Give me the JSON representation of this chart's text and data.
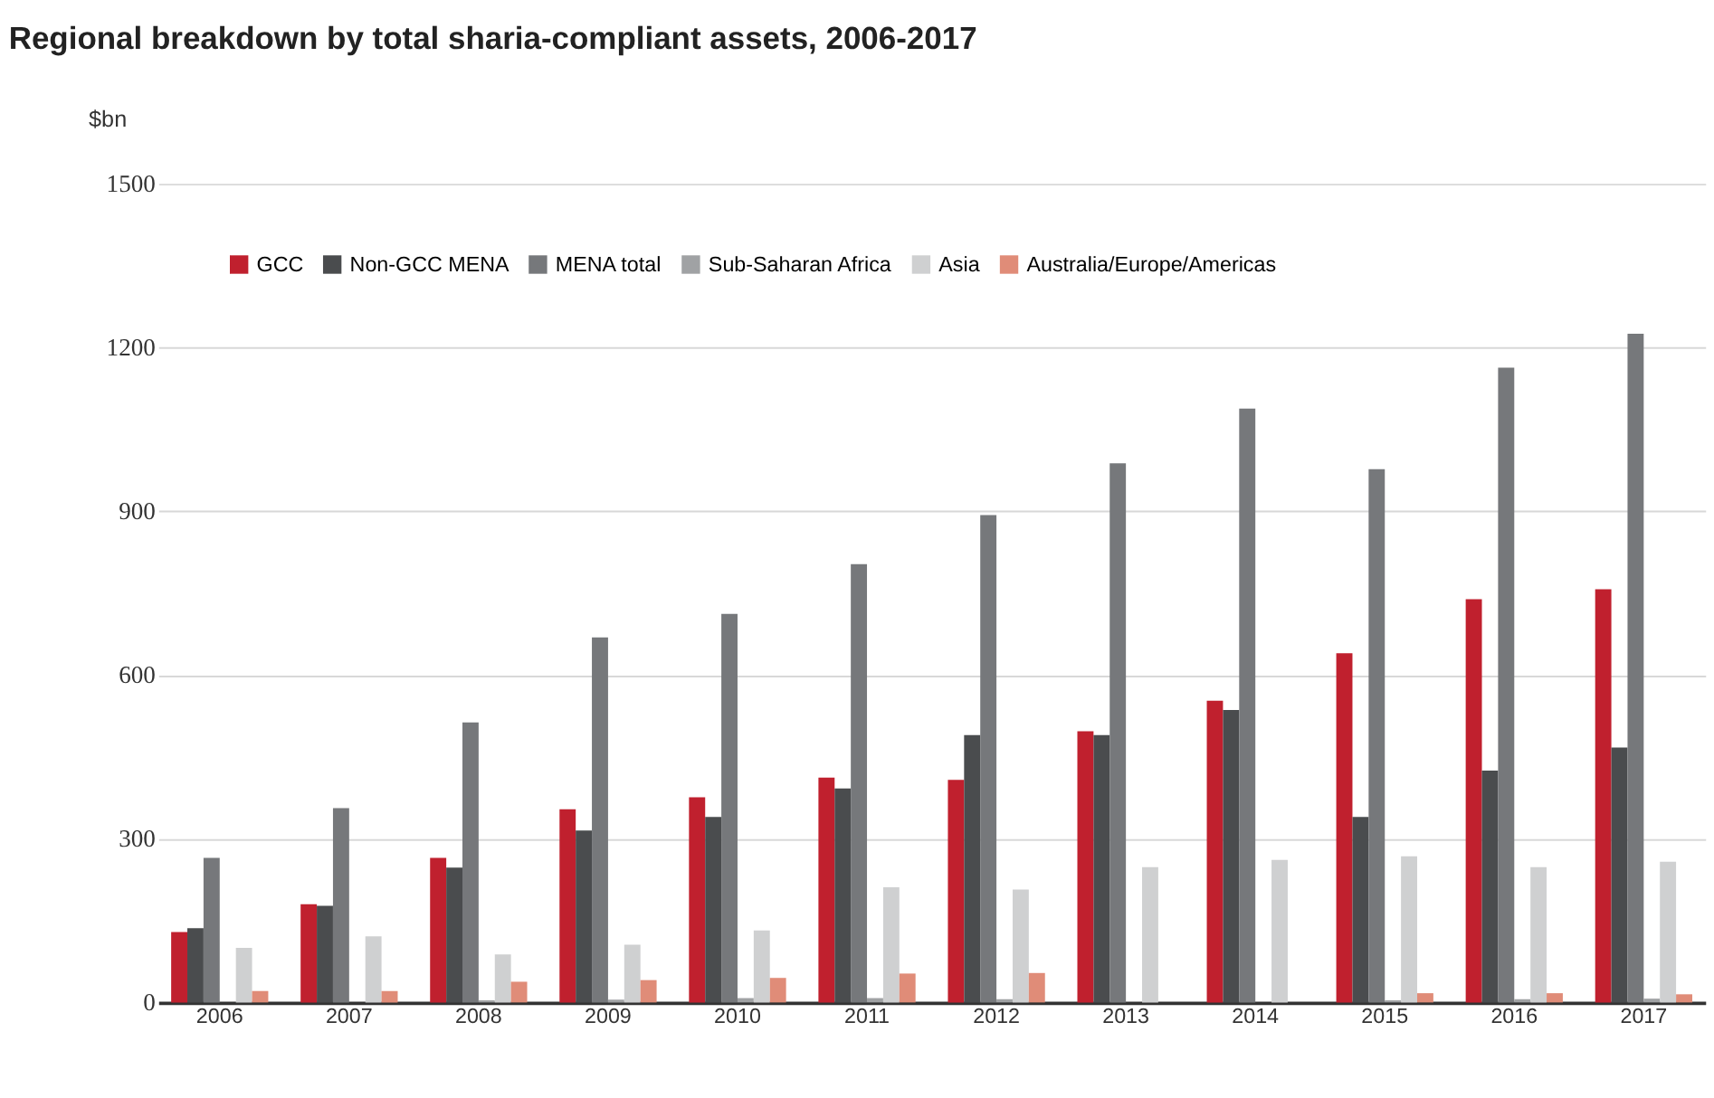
{
  "chart_data": {
    "type": "bar",
    "title": "Regional breakdown by total sharia-compliant assets, 2006-2017",
    "ylabel": "$bn",
    "categories": [
      "2006",
      "2007",
      "2008",
      "2009",
      "2010",
      "2011",
      "2012",
      "2013",
      "2014",
      "2015",
      "2016",
      "2017"
    ],
    "series": [
      {
        "name": "GCC",
        "color": "#c0202e",
        "values": [
          129,
          180,
          265,
          354,
          376,
          412,
          408,
          497,
          553,
          640,
          739,
          757
        ]
      },
      {
        "name": "Non-GCC MENA",
        "color": "#4a4c4e",
        "values": [
          136,
          177,
          247,
          315,
          340,
          392,
          490,
          490,
          536,
          340,
          425,
          467
        ]
      },
      {
        "name": "MENA total",
        "color": "#76787b",
        "values": [
          265,
          356,
          513,
          669,
          712,
          803,
          893,
          988,
          1088,
          977,
          1163,
          1225
        ]
      },
      {
        "name": "Sub-Saharan Africa",
        "color": "#a0a2a4",
        "values": [
          null,
          null,
          4,
          5,
          8,
          8,
          6,
          null,
          null,
          4,
          6,
          7
        ]
      },
      {
        "name": "Asia",
        "color": "#cfd0d1",
        "values": [
          100,
          121,
          88,
          106,
          132,
          211,
          207,
          248,
          261,
          268,
          248,
          258
        ]
      },
      {
        "name": "Australia/Europe/Americas",
        "color": "#e08c78",
        "values": [
          21,
          21,
          38,
          41,
          45,
          53,
          54,
          null,
          null,
          17,
          17,
          15
        ]
      }
    ],
    "ylim": [
      0,
      1500
    ],
    "yticks": [
      0,
      300,
      600,
      900,
      1200,
      1500
    ],
    "grid": "y",
    "legend": "top left"
  }
}
